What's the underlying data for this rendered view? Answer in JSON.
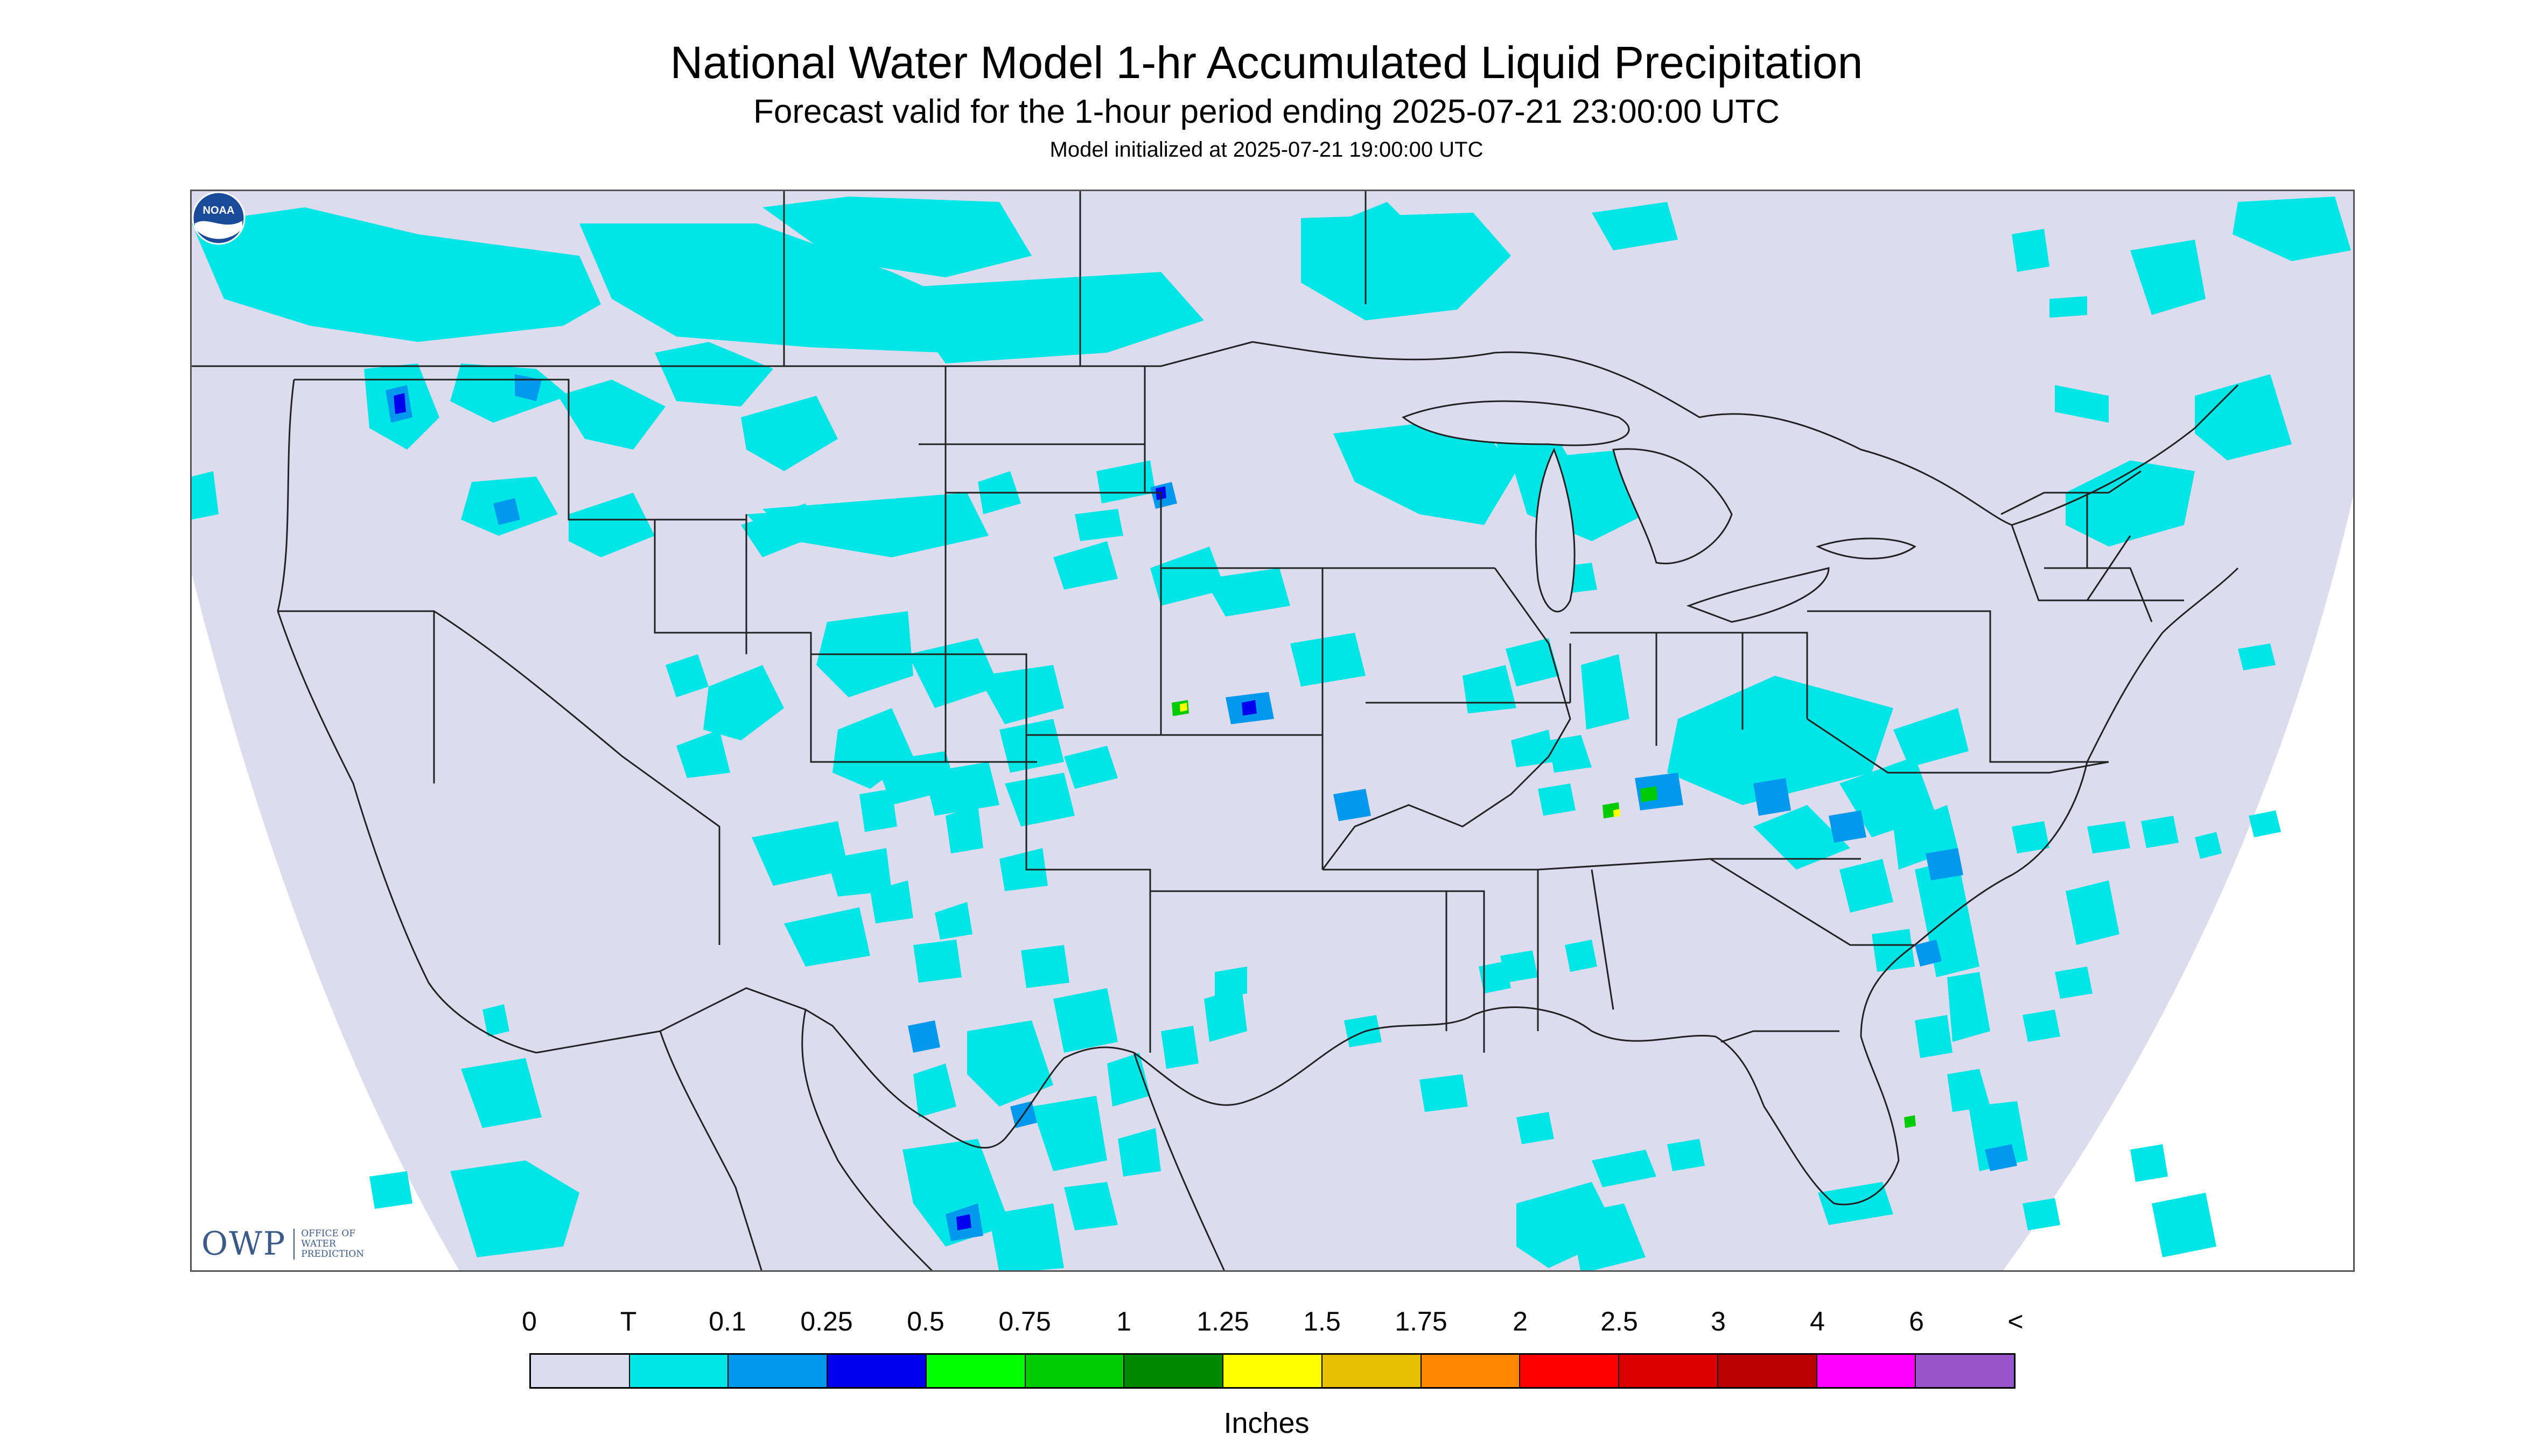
{
  "title": "National Water Model 1-hr Accumulated Liquid Precipitation",
  "subtitle": "Forecast valid for the 1-hour period ending 2025-07-21 23:00:00 UTC",
  "init_line": "Model initialized at 2025-07-21 19:00:00 UTC",
  "logos": {
    "owp_mark": "OWP",
    "owp_text": "OFFICE OF WATER PREDICTION",
    "noaa_text": "NOAA"
  },
  "colors": {
    "background": "#dcdcee",
    "outside_domain": "#ffffff",
    "borders": "#222222",
    "precip_light": "#00e5e5",
    "precip_medium": "#0099ee",
    "precip_heavy": "#0000ee",
    "precip_green": "#00cc00",
    "precip_yellow": "#ffff00"
  },
  "legend": {
    "labels": [
      "0",
      "T",
      "0.1",
      "0.25",
      "0.5",
      "0.75",
      "1",
      "1.25",
      "1.5",
      "1.75",
      "2",
      "2.5",
      "3",
      "4",
      "6",
      "<"
    ],
    "colors": [
      "#dcdcee",
      "#00e5e5",
      "#0099ee",
      "#0000ee",
      "#00ff00",
      "#00cc00",
      "#008800",
      "#ffff00",
      "#e6bf00",
      "#ff8800",
      "#ff0000",
      "#dd0000",
      "#bb0000",
      "#ff00ff",
      "#9955cc"
    ],
    "units": "Inches"
  }
}
